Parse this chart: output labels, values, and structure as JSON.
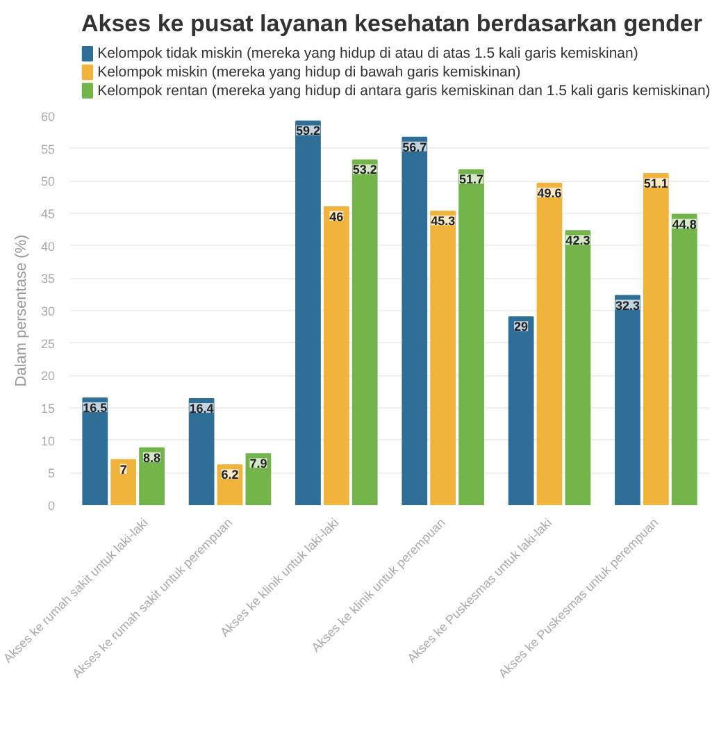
{
  "chart_data": {
    "type": "bar",
    "title": "Akses ke pusat layanan kesehatan berdasarkan gender",
    "ylabel": "Dalam persentase (%)",
    "categories": [
      "Akses ke rumah sakit untuk laki-laki",
      "Akses ke rumah sakit untuk perempuan",
      "Akses ke klinik untuk laki-laki",
      "Akses ke klinik untuk perempuan",
      "Akses ke Puskesmas untuk laki-laki",
      "Akses ke Puskesmas untuk perempuan"
    ],
    "series": [
      {
        "name": "Kelompok tidak miskin (mereka yang hidup di atau di atas 1.5 kali garis kemiskinan)",
        "color": "#2f6f97",
        "values": [
          16.5,
          16.4,
          59.2,
          56.7,
          29,
          32.3
        ]
      },
      {
        "name": "Kelompok miskin (mereka yang hidup di bawah garis kemiskinan)",
        "color": "#f0b43c",
        "values": [
          7,
          6.2,
          46,
          45.3,
          49.6,
          51.1
        ]
      },
      {
        "name": "Kelompok rentan (mereka yang hidup di antara garis kemiskinan dan 1.5 kali garis kemiskinan)",
        "color": "#73b44b",
        "values": [
          8.8,
          7.9,
          53.2,
          51.7,
          42.3,
          44.8
        ]
      }
    ],
    "ylim": [
      0,
      60
    ],
    "yticks": [
      0,
      5,
      10,
      15,
      20,
      25,
      30,
      35,
      40,
      45,
      50,
      55,
      60
    ],
    "grid": "y",
    "legend": "top",
    "data_labels": true
  }
}
